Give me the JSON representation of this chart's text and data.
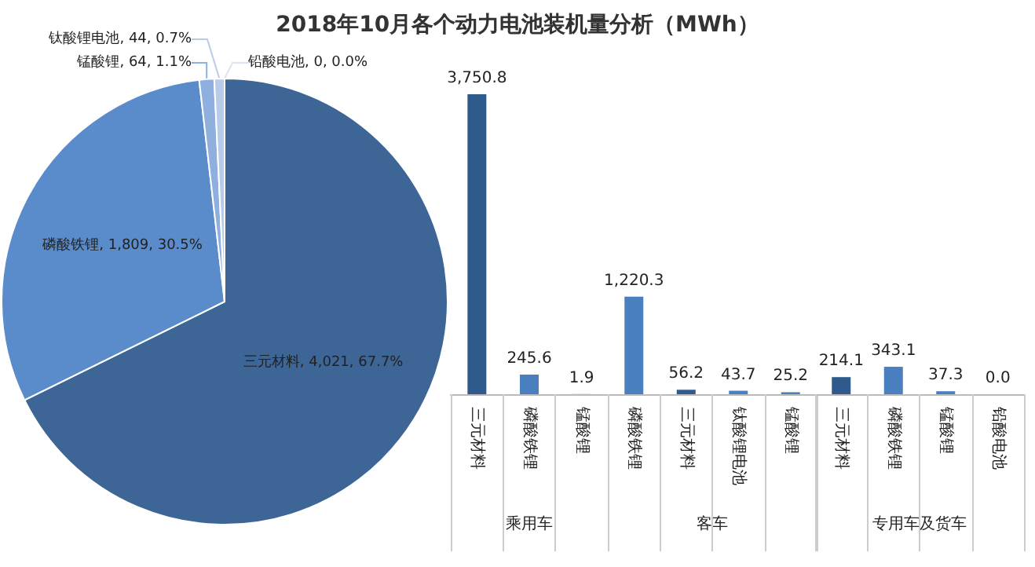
{
  "chart_data": [
    {
      "type": "pie",
      "title": "2018年10月各个动力电池装机量分析（MWh）",
      "categories": [
        "三元材料",
        "磷酸铁锂",
        "锰酸锂",
        "钛酸锂电池",
        "铅酸电池"
      ],
      "values": [
        4021,
        1809,
        64,
        44,
        0
      ],
      "colors": [
        "#3d6596",
        "#5a8bcb",
        "#8fb0de",
        "#b8cbe8",
        "#d9e3f2"
      ],
      "value_labels": [
        "4,021, 67.7%",
        "1,809, 30.5%",
        "64, 1.1%",
        "44, 0.7%",
        "0, 0.0%"
      ]
    },
    {
      "type": "bar",
      "xlabel": "乘用车",
      "categories": [
        "三元材料",
        "磷酸铁锂",
        "锰酸锂"
      ],
      "values": [
        3750.8,
        245.6,
        1.9
      ],
      "colors": [
        "#2f5b8c",
        "#4a7fc0",
        "#4a7fc0"
      ],
      "value_labels": [
        "3,750.8",
        "245.6",
        "1.9"
      ]
    },
    {
      "type": "bar",
      "xlabel": "客车",
      "categories": [
        "磷酸铁锂",
        "三元材料",
        "钛酸锂电池",
        "锰酸锂"
      ],
      "values": [
        1220.3,
        56.2,
        43.7,
        25.2
      ],
      "colors": [
        "#4a7fc0",
        "#2f5b8c",
        "#4a7fc0",
        "#4a7fc0"
      ],
      "value_labels": [
        "1,220.3",
        "56.2",
        "43.7",
        "25.2"
      ]
    },
    {
      "type": "bar",
      "xlabel": "专用车及货车",
      "categories": [
        "三元材料",
        "磷酸铁锂",
        "锰酸锂",
        "铅酸电池"
      ],
      "values": [
        214.1,
        343.1,
        37.3,
        0.0
      ],
      "colors": [
        "#2f5b8c",
        "#4a7fc0",
        "#4a7fc0",
        "#4a7fc0"
      ],
      "value_labels": [
        "214.1",
        "343.1",
        "37.3",
        "0.0"
      ]
    }
  ]
}
